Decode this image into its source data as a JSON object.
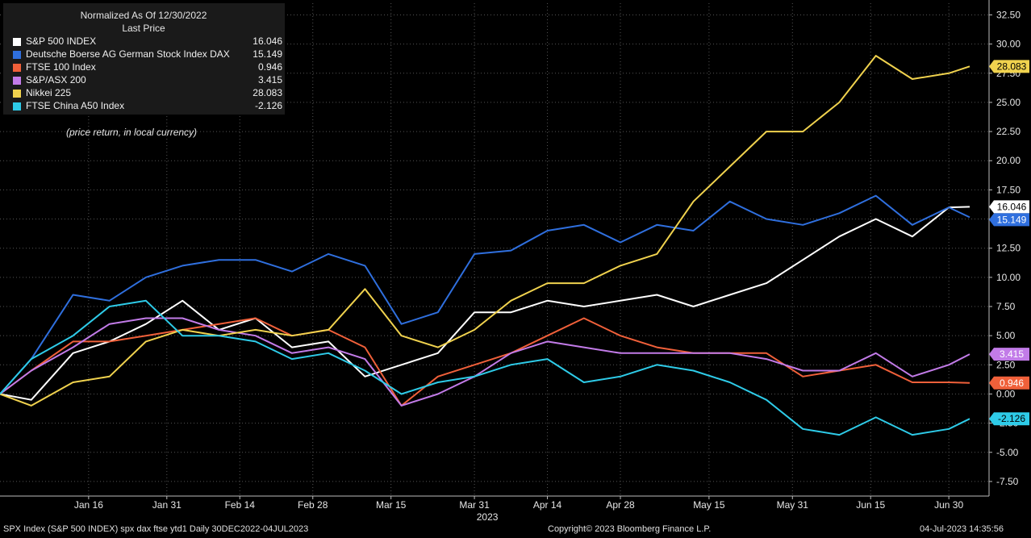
{
  "legend": {
    "header_line1": "Normalized As Of 12/30/2022",
    "header_line2": "Last Price",
    "note": "(price return, in local currency)"
  },
  "footer": {
    "left": "SPX Index (S&P 500 INDEX) spx dax ftse ytd1  Daily 30DEC2022-04JUL2023",
    "center": "Copyright© 2023 Bloomberg Finance L.P.",
    "right": "04-Jul-2023 14:35:56"
  },
  "chart_data": {
    "type": "line",
    "x_dates": [
      "2022-12-30",
      "2023-01-05",
      "2023-01-13",
      "2023-01-20",
      "2023-01-27",
      "2023-02-03",
      "2023-02-10",
      "2023-02-17",
      "2023-02-24",
      "2023-03-03",
      "2023-03-10",
      "2023-03-17",
      "2023-03-24",
      "2023-03-31",
      "2023-04-07",
      "2023-04-14",
      "2023-04-21",
      "2023-04-28",
      "2023-05-05",
      "2023-05-12",
      "2023-05-19",
      "2023-05-26",
      "2023-06-02",
      "2023-06-09",
      "2023-06-16",
      "2023-06-23",
      "2023-06-30",
      "2023-07-04"
    ],
    "x_tick_labels": [
      "Jan 16",
      "Jan 31",
      "Feb 14",
      "Feb 28",
      "Mar 15",
      "Mar 31",
      "Apr 14",
      "Apr 28",
      "May 15",
      "May 31",
      "Jun 15",
      "Jun 30"
    ],
    "x_tick_dates": [
      "2023-01-16",
      "2023-01-31",
      "2023-02-14",
      "2023-02-28",
      "2023-03-15",
      "2023-03-31",
      "2023-04-14",
      "2023-04-28",
      "2023-05-15",
      "2023-05-31",
      "2023-06-15",
      "2023-06-30"
    ],
    "x_sublabel": "2023",
    "ylim": [
      -8.75,
      33.5
    ],
    "y_ticks": [
      "32.50",
      "30.00",
      "27.50",
      "25.00",
      "22.50",
      "20.00",
      "17.50",
      "15.00",
      "12.50",
      "10.00",
      "7.50",
      "5.00",
      "2.50",
      "0.00",
      "-2.50",
      "-5.00",
      "-7.50"
    ],
    "y_tick_values": [
      32.5,
      30,
      27.5,
      25,
      22.5,
      20,
      17.5,
      15,
      12.5,
      10,
      7.5,
      5,
      2.5,
      0,
      -2.5,
      -5,
      -7.5
    ],
    "series": [
      {
        "name": "S&P 500 INDEX",
        "last": "16.046",
        "color": "#ffffff",
        "values": [
          0,
          -0.5,
          3.5,
          4.5,
          6,
          8,
          5.5,
          6.5,
          4,
          4.5,
          1.5,
          2.5,
          3.5,
          7,
          7,
          8,
          7.5,
          8,
          8.5,
          7.5,
          8.5,
          9.5,
          11.5,
          13.5,
          15,
          13.5,
          16,
          16.046
        ]
      },
      {
        "name": "Deutsche Boerse AG German Stock Index DAX",
        "last": "15.149",
        "color": "#2f6fde",
        "values": [
          0,
          3,
          8.5,
          8,
          10,
          11,
          11.5,
          11.5,
          10.5,
          12,
          11,
          6,
          7,
          12,
          12.3,
          14,
          14.5,
          13,
          14.5,
          14,
          16.5,
          15,
          14.5,
          15.5,
          17,
          14.5,
          16,
          15.149
        ]
      },
      {
        "name": "FTSE 100 Index",
        "last": "0.946",
        "color": "#f0603a",
        "values": [
          0,
          2,
          4.5,
          4.5,
          5,
          5.5,
          6,
          6.5,
          5,
          5.5,
          4,
          -1,
          1.5,
          2.5,
          3.5,
          5,
          6.5,
          5,
          4,
          3.5,
          3.5,
          3.5,
          1.5,
          2,
          2.5,
          1,
          1,
          0.946
        ]
      },
      {
        "name": "S&P/ASX 200",
        "last": "3.415",
        "color": "#c27be8",
        "values": [
          0,
          2,
          4,
          6,
          6.5,
          6.5,
          5.5,
          5,
          3.5,
          4,
          3,
          -1,
          0,
          1.5,
          3.5,
          4.5,
          4,
          3.5,
          3.5,
          3.5,
          3.5,
          3,
          2,
          2,
          3.5,
          1.5,
          2.5,
          3.415
        ]
      },
      {
        "name": "Nikkei 225",
        "last": "28.083",
        "color": "#f0d24e",
        "values": [
          0,
          -1,
          1,
          1.5,
          4.5,
          5.5,
          5,
          5.5,
          5,
          5.5,
          9,
          5,
          4,
          5.5,
          8,
          9.5,
          9.5,
          11,
          12,
          16.5,
          19.5,
          22.5,
          22.5,
          25,
          29,
          27,
          27.5,
          28.083
        ]
      },
      {
        "name": "FTSE China A50 Index",
        "last": "-2.126",
        "color": "#2ecbe8",
        "values": [
          0,
          3,
          5,
          7.5,
          8,
          5,
          5,
          4.5,
          3,
          3.5,
          2,
          0,
          1,
          1.5,
          2.5,
          3,
          1,
          1.5,
          2.5,
          2,
          1,
          -0.5,
          -3,
          -3.5,
          -2,
          -3.5,
          -3,
          -2.126
        ]
      }
    ]
  }
}
